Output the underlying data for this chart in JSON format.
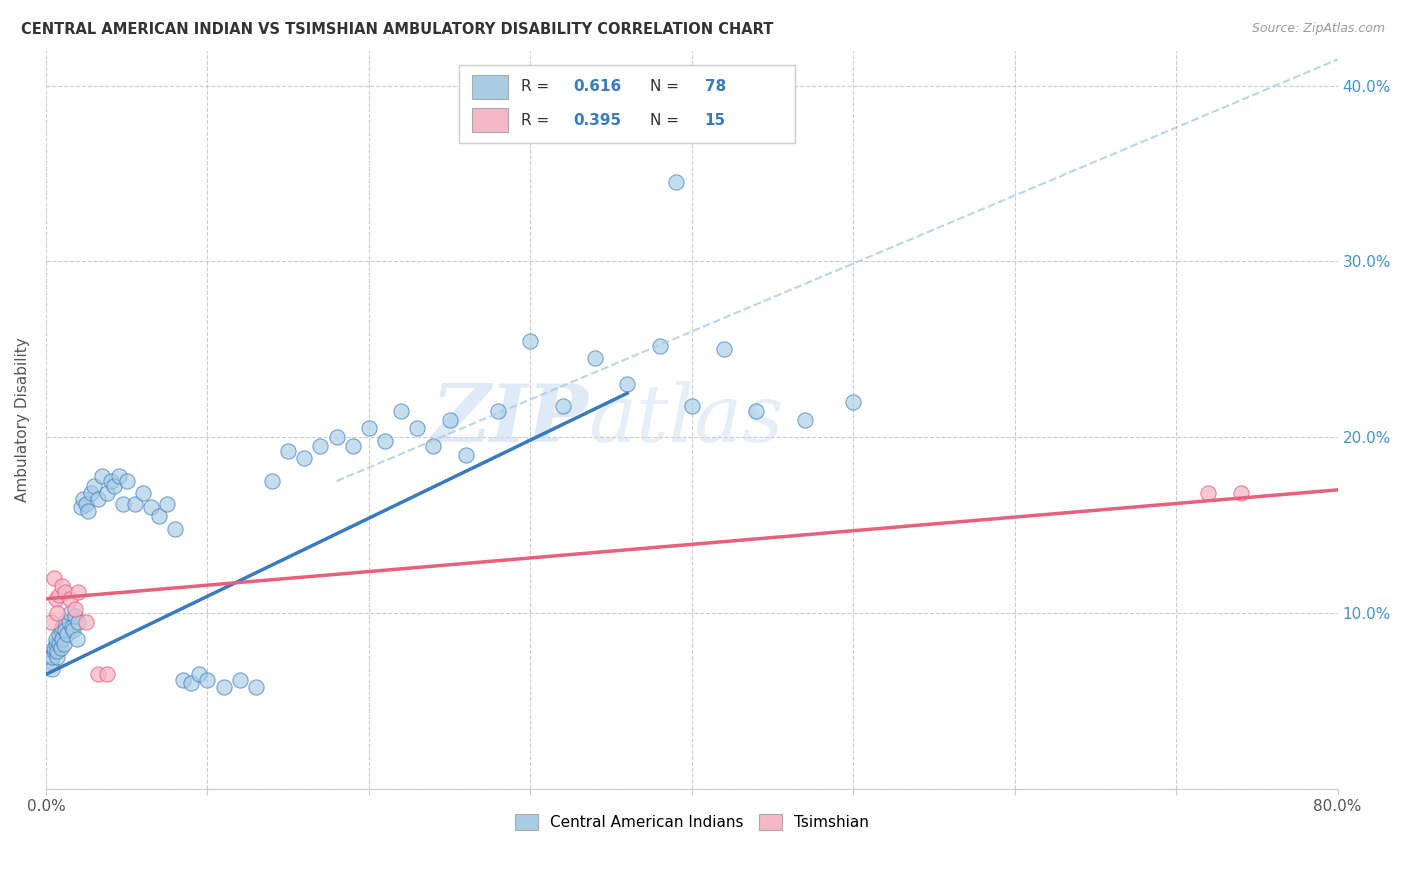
{
  "title": "CENTRAL AMERICAN INDIAN VS TSIMSHIAN AMBULATORY DISABILITY CORRELATION CHART",
  "source": "Source: ZipAtlas.com",
  "ylabel": "Ambulatory Disability",
  "xlim": [
    0,
    0.8
  ],
  "ylim": [
    0,
    0.42
  ],
  "R_blue": 0.616,
  "N_blue": 78,
  "R_pink": 0.395,
  "N_pink": 15,
  "blue_color": "#a8cce4",
  "pink_color": "#f4b8c8",
  "blue_line_color": "#3a7abf",
  "pink_line_color": "#e8607a",
  "dashed_line_color": "#a8cce4",
  "watermark_zip": "ZIP",
  "watermark_atlas": "atlas",
  "legend_bottom_label1": "Central American Indians",
  "legend_bottom_label2": "Tsimshian",
  "blue_scatter_x": [
    0.003,
    0.004,
    0.004,
    0.005,
    0.005,
    0.006,
    0.006,
    0.007,
    0.007,
    0.008,
    0.008,
    0.009,
    0.009,
    0.01,
    0.01,
    0.011,
    0.012,
    0.012,
    0.013,
    0.014,
    0.015,
    0.016,
    0.017,
    0.018,
    0.019,
    0.02,
    0.022,
    0.023,
    0.025,
    0.026,
    0.028,
    0.03,
    0.032,
    0.035,
    0.038,
    0.04,
    0.042,
    0.045,
    0.048,
    0.05,
    0.055,
    0.06,
    0.065,
    0.07,
    0.075,
    0.08,
    0.085,
    0.09,
    0.095,
    0.1,
    0.11,
    0.12,
    0.13,
    0.14,
    0.15,
    0.16,
    0.17,
    0.18,
    0.19,
    0.2,
    0.21,
    0.22,
    0.23,
    0.24,
    0.25,
    0.26,
    0.28,
    0.3,
    0.32,
    0.34,
    0.36,
    0.38,
    0.39,
    0.4,
    0.42,
    0.44,
    0.47,
    0.5
  ],
  "blue_scatter_y": [
    0.072,
    0.068,
    0.075,
    0.078,
    0.08,
    0.082,
    0.085,
    0.075,
    0.078,
    0.082,
    0.088,
    0.08,
    0.09,
    0.085,
    0.092,
    0.082,
    0.095,
    0.09,
    0.088,
    0.095,
    0.1,
    0.092,
    0.09,
    0.098,
    0.085,
    0.095,
    0.16,
    0.165,
    0.162,
    0.158,
    0.168,
    0.172,
    0.165,
    0.178,
    0.168,
    0.175,
    0.172,
    0.178,
    0.162,
    0.175,
    0.162,
    0.168,
    0.16,
    0.155,
    0.162,
    0.148,
    0.062,
    0.06,
    0.065,
    0.062,
    0.058,
    0.062,
    0.058,
    0.175,
    0.192,
    0.188,
    0.195,
    0.2,
    0.195,
    0.205,
    0.198,
    0.215,
    0.205,
    0.195,
    0.21,
    0.19,
    0.215,
    0.255,
    0.218,
    0.245,
    0.23,
    0.252,
    0.345,
    0.218,
    0.25,
    0.215,
    0.21,
    0.22
  ],
  "pink_scatter_x": [
    0.003,
    0.005,
    0.006,
    0.007,
    0.008,
    0.01,
    0.012,
    0.015,
    0.018,
    0.02,
    0.025,
    0.032,
    0.038,
    0.72,
    0.74
  ],
  "pink_scatter_y": [
    0.095,
    0.12,
    0.108,
    0.1,
    0.11,
    0.115,
    0.112,
    0.108,
    0.102,
    0.112,
    0.095,
    0.065,
    0.065,
    0.168,
    0.168
  ],
  "blue_trendline": [
    0.0,
    0.36,
    0.065,
    0.225
  ],
  "pink_trendline": [
    0.0,
    0.8,
    0.108,
    0.17
  ],
  "dashed_line": [
    0.18,
    0.8,
    0.175,
    0.415
  ]
}
